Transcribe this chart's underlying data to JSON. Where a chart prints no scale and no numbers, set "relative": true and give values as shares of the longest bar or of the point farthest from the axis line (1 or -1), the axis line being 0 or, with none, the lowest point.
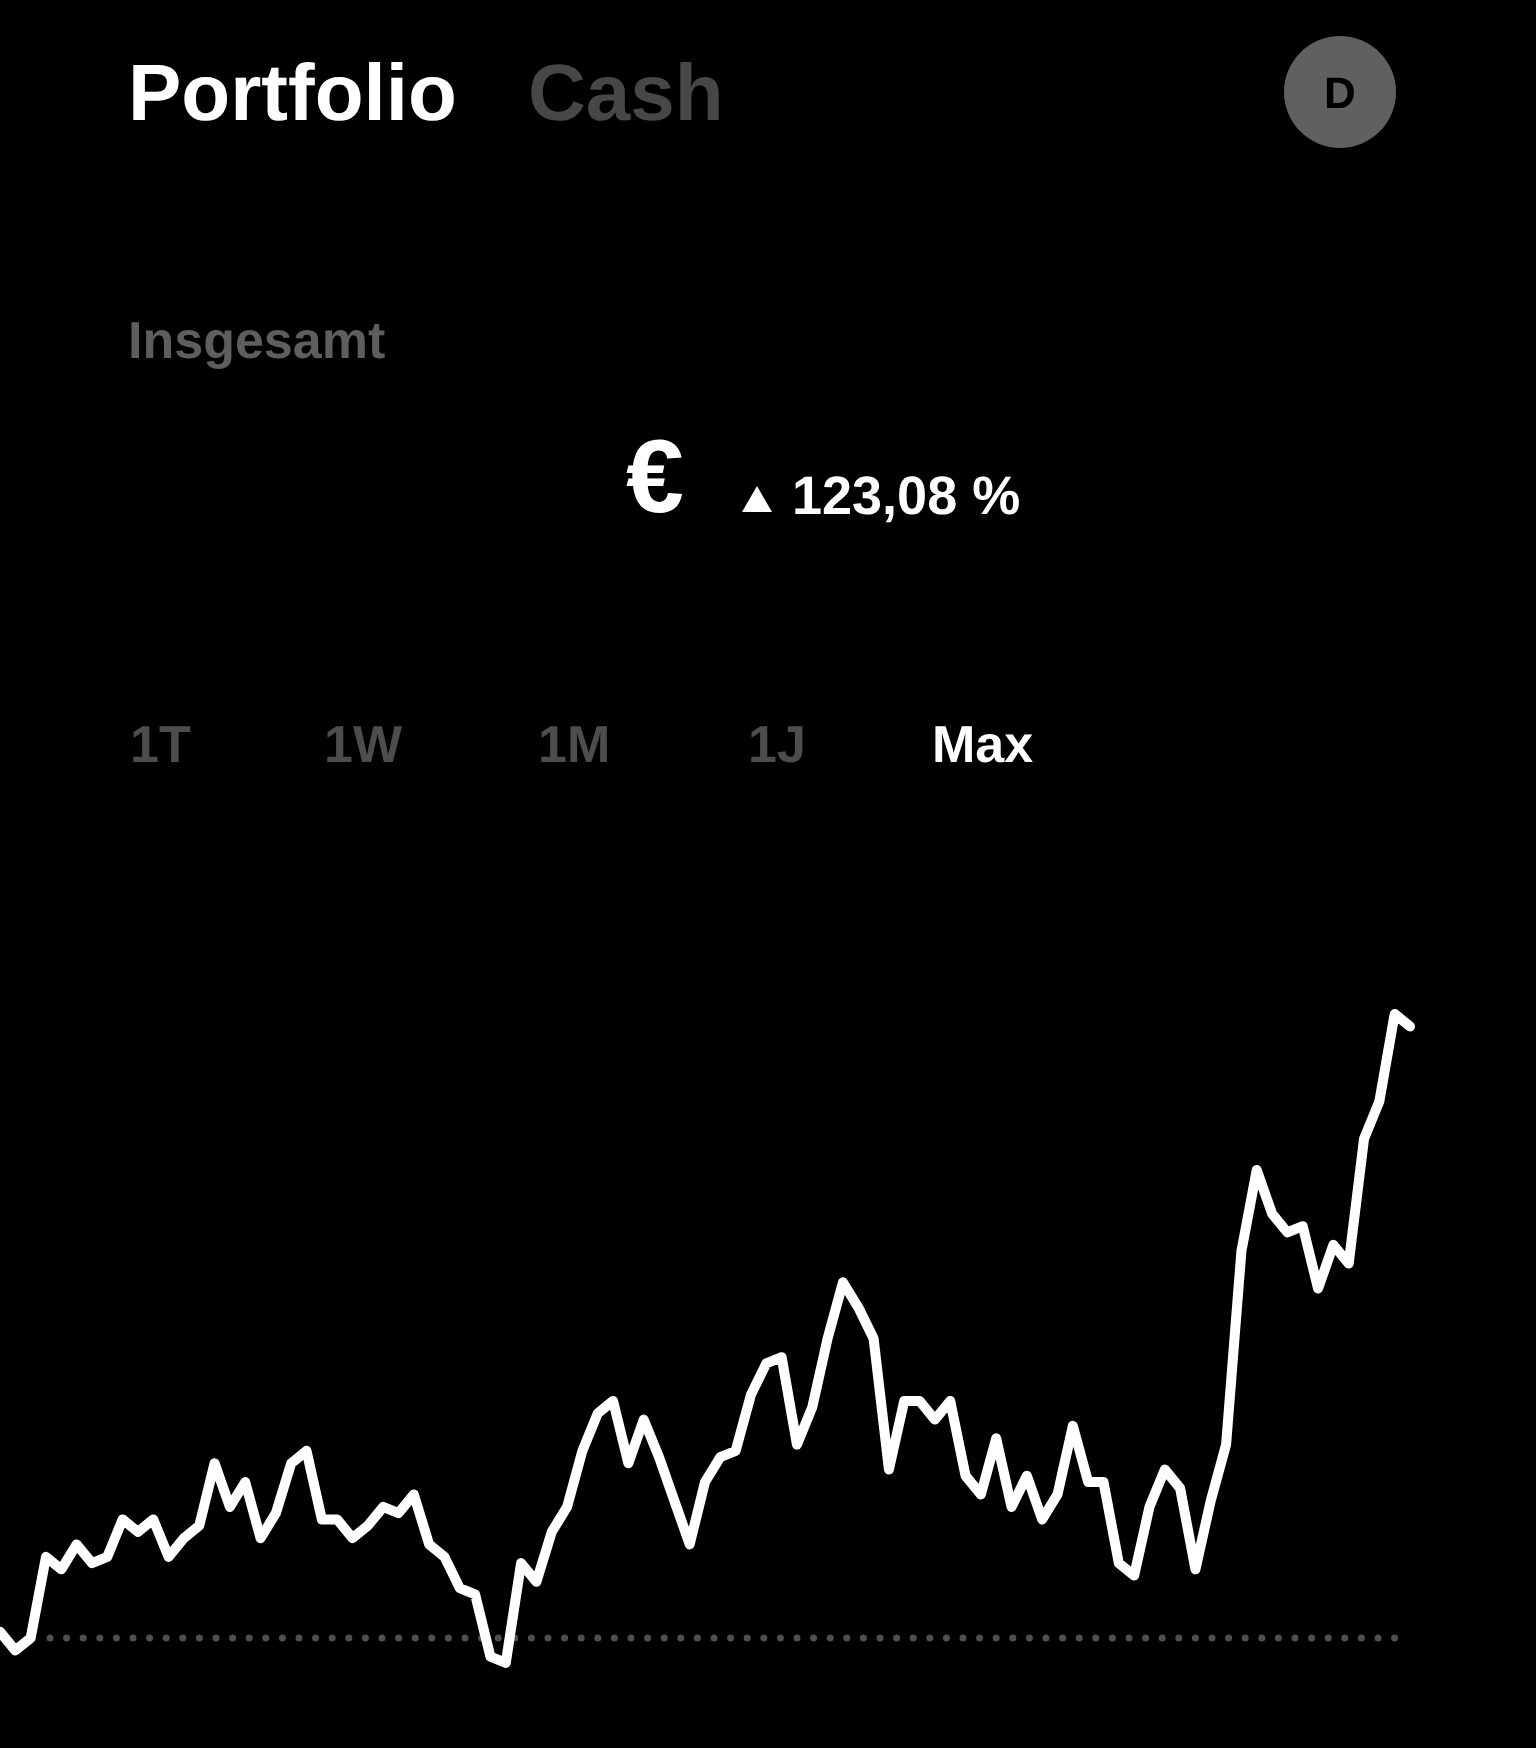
{
  "chart_data": {
    "type": "line",
    "title": "Portfolio",
    "annotations": [
      "Cash",
      "D",
      "Insgesamt",
      "€",
      "123,08 %",
      "1T",
      "1W",
      "1M",
      "1J",
      "Max"
    ],
    "relative": true,
    "categories": [
      null,
      null,
      null,
      null,
      null,
      null,
      null,
      null,
      null,
      null,
      null,
      null,
      null,
      null,
      null,
      null,
      null,
      null,
      null,
      null,
      null,
      null,
      null,
      null,
      null,
      null,
      null,
      null,
      null,
      null,
      null,
      null,
      null,
      null,
      null,
      null,
      null,
      null,
      null,
      null,
      null,
      null,
      null,
      null,
      null,
      null,
      null,
      null,
      null,
      null,
      null,
      null,
      null,
      null,
      null,
      null,
      null,
      null,
      null,
      null,
      null,
      null,
      null,
      null,
      null,
      null,
      null,
      null,
      null,
      null,
      null,
      null,
      null,
      null,
      null,
      null,
      null,
      null,
      null,
      null,
      null,
      null,
      null,
      null,
      null,
      null,
      null,
      null,
      null,
      null,
      null,
      null,
      null
    ],
    "series": [
      {
        "color": "#ffffff",
        "values": [
          0.01,
          -0.02,
          0,
          0.13,
          0.11,
          0.15,
          0.12,
          0.13,
          0.19,
          0.17,
          0.19,
          0.13,
          0.16,
          0.18,
          0.28,
          0.21,
          0.25,
          0.16,
          0.2,
          0.28,
          0.3,
          0.19,
          0.19,
          0.16,
          0.18,
          0.21,
          0.2,
          0.23,
          0.15,
          0.13,
          0.08,
          0.07,
          -0.03,
          -0.04,
          0.12,
          0.09,
          0.17,
          0.21,
          0.3,
          0.36,
          0.38,
          0.28,
          0.35,
          0.29,
          0.22,
          0.15,
          0.25,
          0.29,
          0.3,
          0.39,
          0.44,
          0.45,
          0.31,
          0.37,
          0.48,
          0.57,
          0.53,
          0.48,
          0.27,
          0.38,
          0.38,
          0.35,
          0.38,
          0.26,
          0.23,
          0.32,
          0.21,
          0.26,
          0.19,
          0.23,
          0.34,
          0.25,
          0.25,
          0.12,
          0.1,
          0.21,
          0.27,
          0.24,
          0.11,
          0.22,
          0.31,
          0.62,
          0.75,
          0.68,
          0.65,
          0.66,
          0.56,
          0.63,
          0.6,
          0.8,
          0.86,
          1,
          0.98
        ]
      }
    ],
    "ref_lines": [
      {
        "axis": "y",
        "value": 0,
        "line_style": "dotted",
        "color": "#4f4f4f"
      }
    ]
  }
}
